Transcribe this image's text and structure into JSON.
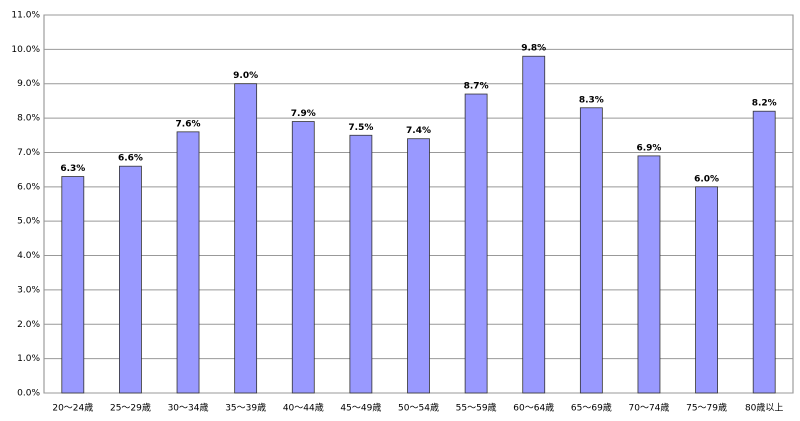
{
  "chart_data": {
    "type": "bar",
    "categories": [
      "20～24歳",
      "25～29歳",
      "30～34歳",
      "35～39歳",
      "40～44歳",
      "45～49歳",
      "50～54歳",
      "55～59歳",
      "60～64歳",
      "65～69歳",
      "70～74歳",
      "75～79歳",
      "80歳以上"
    ],
    "values": [
      6.3,
      6.6,
      7.6,
      9.0,
      7.9,
      7.5,
      7.4,
      8.7,
      9.8,
      8.3,
      6.9,
      6.0,
      8.2
    ],
    "value_labels": [
      "6.3%",
      "6.6%",
      "7.6%",
      "9.0%",
      "7.9%",
      "7.5%",
      "7.4%",
      "8.7%",
      "9.8%",
      "8.3%",
      "6.9%",
      "6.0%",
      "8.2%"
    ],
    "color": "#9999ff",
    "ylim": [
      0,
      11
    ],
    "yticks": [
      {
        "value": 0,
        "label": "0.0%"
      },
      {
        "value": 1,
        "label": "1.0%"
      },
      {
        "value": 2,
        "label": "2.0%"
      },
      {
        "value": 3,
        "label": "3.0%"
      },
      {
        "value": 4,
        "label": "4.0%"
      },
      {
        "value": 5,
        "label": "5.0%"
      },
      {
        "value": 6,
        "label": "6.0%"
      },
      {
        "value": 7,
        "label": "7.0%"
      },
      {
        "value": 8,
        "label": "8.0%"
      },
      {
        "value": 9,
        "label": "9.0%"
      },
      {
        "value": 10,
        "label": "10.0%"
      },
      {
        "value": 11,
        "label": "11.0%"
      }
    ],
    "grid": true
  }
}
